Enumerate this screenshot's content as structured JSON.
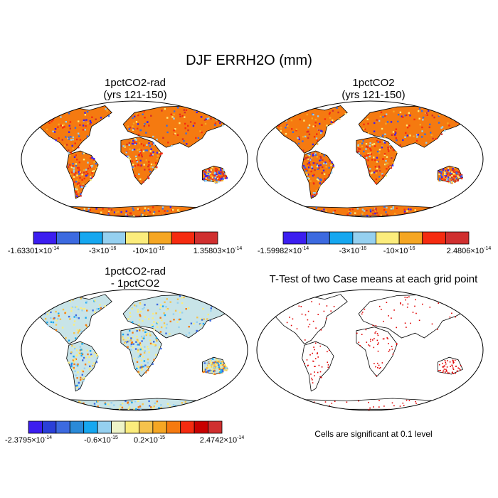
{
  "chart_data": {
    "title": "DJF ERRH2O (mm)",
    "note": "Cells are significant at 0.1 level",
    "panels": [
      {
        "type": "heatmap",
        "title_line1": "1pctCO2-rad",
        "title_line2": "(yrs 121-150)",
        "colorbar": {
          "colors": [
            "#3c1ef0",
            "#3c6ae0",
            "#16a7f0",
            "#95d0f0",
            "#fbec7c",
            "#f5a623",
            "#f52b10",
            "#d02f2f"
          ],
          "labels": [
            {
              "mant": "-1.63301",
              "exp": "-14"
            },
            {
              "mant": "-3",
              "exp": "-16"
            },
            {
              "mant": "-10",
              "exp": "-16"
            },
            {
              "mant": "1.35803",
              "exp": "-14"
            }
          ]
        }
      },
      {
        "type": "heatmap",
        "title_line1": "1pctCO2",
        "title_line2": "(yrs 121-150)",
        "colorbar": {
          "colors": [
            "#3c1ef0",
            "#3c6ae0",
            "#16a7f0",
            "#95d0f0",
            "#fbec7c",
            "#f5a623",
            "#f52b10",
            "#d02f2f"
          ],
          "labels": [
            {
              "mant": "-1.59982",
              "exp": "-14"
            },
            {
              "mant": "-3",
              "exp": "-16"
            },
            {
              "mant": "-10",
              "exp": "-16"
            },
            {
              "mant": "2.4806",
              "exp": "-14"
            }
          ]
        }
      },
      {
        "type": "heatmap",
        "title_line1": "1pctCO2-rad",
        "title_line2": "- 1pctCO2",
        "colorbar": {
          "colors": [
            "#3c1ef0",
            "#2a3fd8",
            "#3c6ae0",
            "#2a8ad8",
            "#16a7f0",
            "#95d0f0",
            "#eef4c8",
            "#fbec7c",
            "#f5c24c",
            "#f5a623",
            "#f57a10",
            "#f52b10",
            "#c80000",
            "#d02f2f"
          ],
          "labels": [
            {
              "mant": "-2.3795",
              "exp": "-14"
            },
            {
              "mant": "-0.6",
              "exp": "-15"
            },
            {
              "mant": "0.2",
              "exp": "-15"
            },
            {
              "mant": "2.4742",
              "exp": "-14"
            }
          ]
        }
      },
      {
        "type": "scatter",
        "title_line1": "T-Test of two Case means at each grid point",
        "title_line2": ""
      }
    ]
  }
}
